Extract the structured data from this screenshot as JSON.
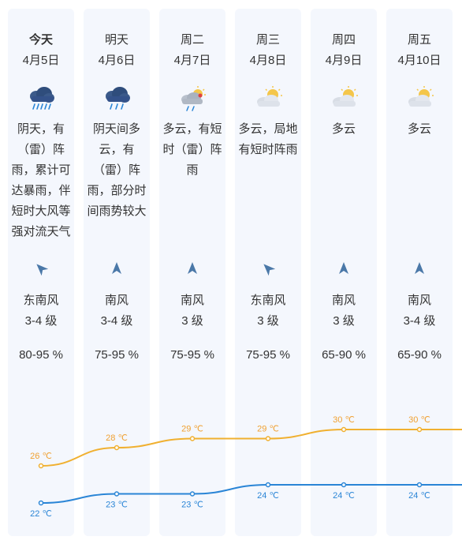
{
  "days": [
    {
      "name": "今天",
      "date": "4月5日",
      "icon": "heavy-rain-icon",
      "desc": "阴天，有（雷）阵雨，累计可达暴雨，伴短时大风等强对流天气",
      "wind_dir": "东南风",
      "wind_level": "3-4 级",
      "humidity": "80-95 %",
      "high": "26 ℃",
      "low": "22 ℃",
      "high_val": 26,
      "low_val": 22
    },
    {
      "name": "明天",
      "date": "4月6日",
      "icon": "rain-icon",
      "desc": "阴天间多云，有（雷）阵雨，部分时间雨势较大",
      "wind_dir": "南风",
      "wind_level": "3-4 级",
      "humidity": "75-95 %",
      "high": "28 ℃",
      "low": "23 ℃",
      "high_val": 28,
      "low_val": 23
    },
    {
      "name": "周二",
      "date": "4月7日",
      "icon": "cloudy-shower-icon",
      "desc": "多云，有短时（雷）阵雨",
      "wind_dir": "南风",
      "wind_level": "3 级",
      "humidity": "75-95 %",
      "high": "29 ℃",
      "low": "23 ℃",
      "high_val": 29,
      "low_val": 23
    },
    {
      "name": "周三",
      "date": "4月8日",
      "icon": "partly-cloudy-icon",
      "desc": "多云，局地有短时阵雨",
      "wind_dir": "东南风",
      "wind_level": "3 级",
      "humidity": "75-95 %",
      "high": "29 ℃",
      "low": "24 ℃",
      "high_val": 29,
      "low_val": 24
    },
    {
      "name": "周四",
      "date": "4月9日",
      "icon": "partly-cloudy-icon",
      "desc": "多云",
      "wind_dir": "南风",
      "wind_level": "3 级",
      "humidity": "65-90 %",
      "high": "30 ℃",
      "low": "24 ℃",
      "high_val": 30,
      "low_val": 24
    },
    {
      "name": "周五",
      "date": "4月10日",
      "icon": "partly-cloudy-icon",
      "desc": "多云",
      "wind_dir": "南风",
      "wind_level": "3-4 级",
      "humidity": "65-90 %",
      "high": "30 ℃",
      "low": "24 ℃",
      "high_val": 30,
      "low_val": 24
    }
  ],
  "colors": {
    "high_line": "#f0b030",
    "low_line": "#2a85d6",
    "column_bg": "#f4f7fd"
  }
}
